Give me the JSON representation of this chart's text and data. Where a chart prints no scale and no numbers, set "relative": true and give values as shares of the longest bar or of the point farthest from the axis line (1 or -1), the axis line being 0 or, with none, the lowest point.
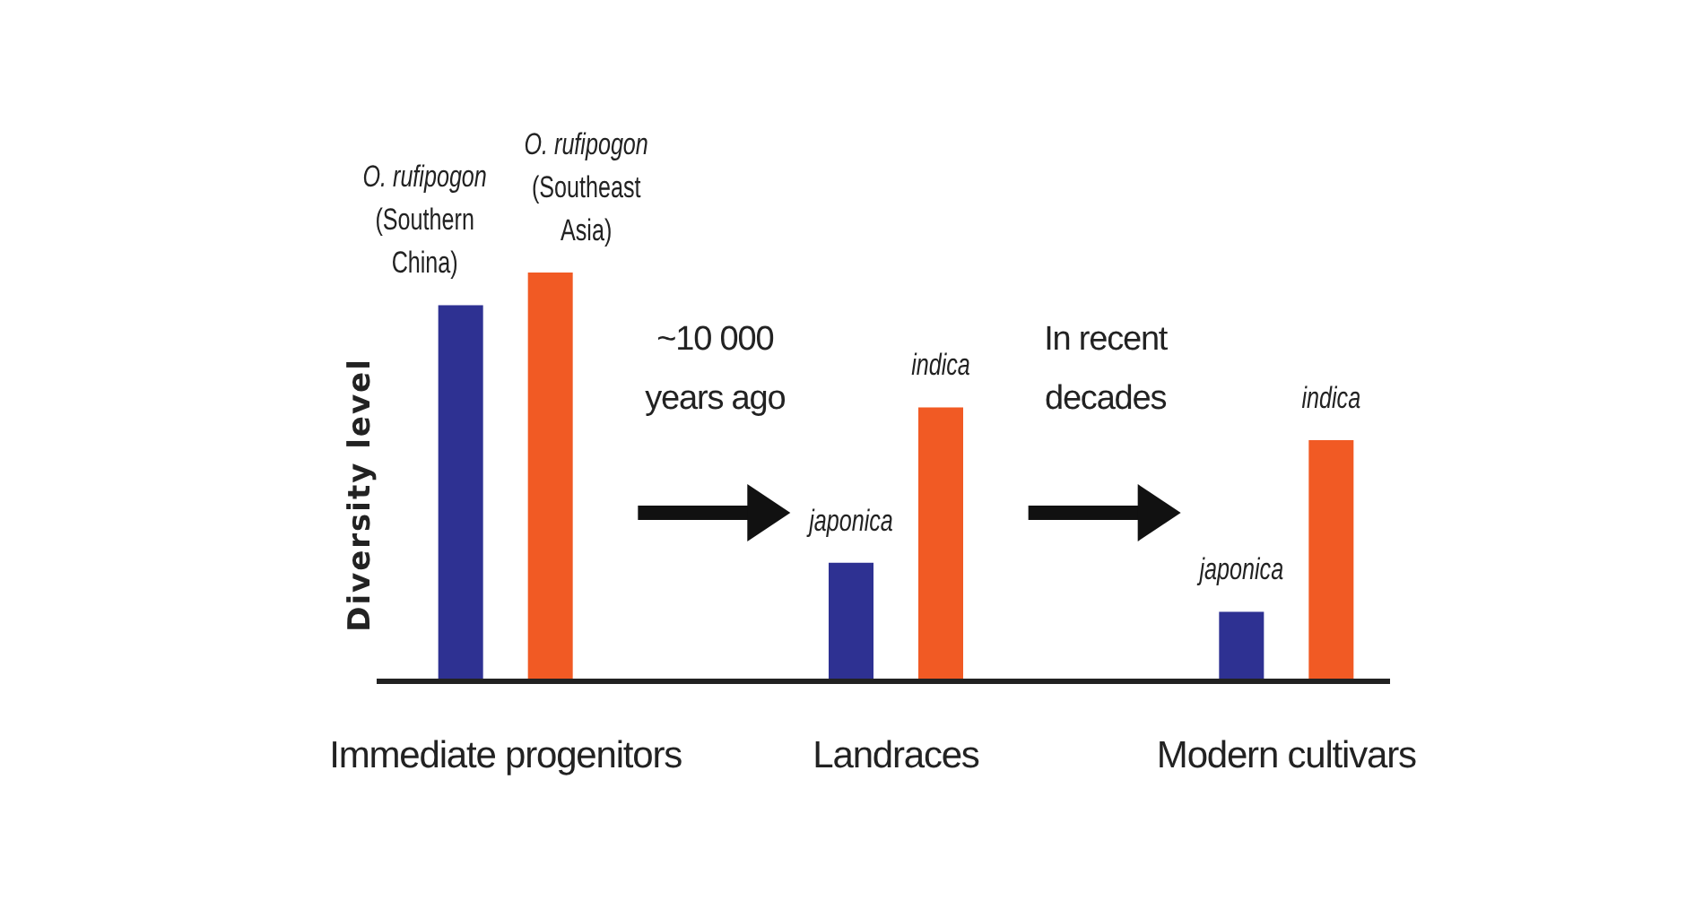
{
  "chart_data": {
    "type": "bar",
    "relative": true,
    "ylabel": "Diversity level",
    "categories": [
      "Immediate progenitors",
      "Landraces",
      "Modern cultivars"
    ],
    "series": [
      {
        "color": "#2e3192",
        "values": [
          0.92,
          0.29,
          0.17
        ]
      },
      {
        "color": "#f15a24",
        "values": [
          1,
          0.67,
          0.59
        ]
      }
    ],
    "annotations": [
      "O. rufipogon\n(Southern\nChina)",
      "O. rufipogon\n(Southeast\nAsia)",
      "japonica",
      "indica",
      "japonica",
      "indica",
      "~10 000\nyears ago",
      "In recent\ndecades"
    ]
  }
}
